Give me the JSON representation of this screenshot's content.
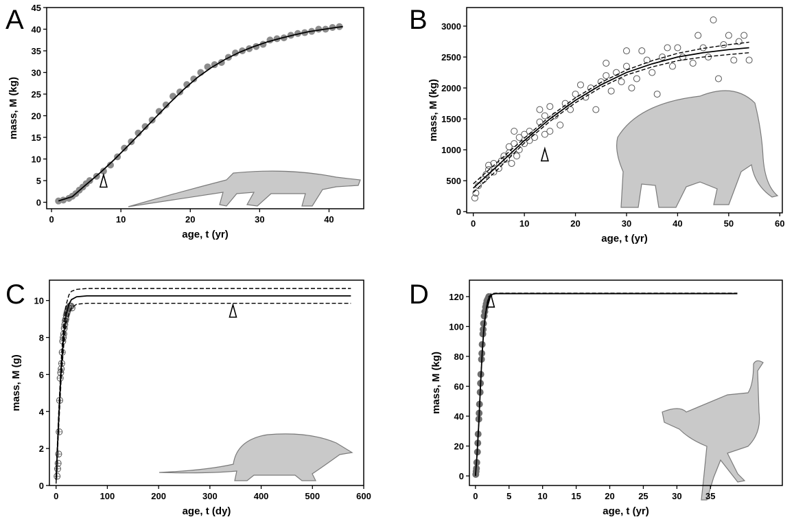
{
  "chart_data": [
    {
      "type": "scatter",
      "panel_label": "A",
      "x_label": "age, t (yr)",
      "y_label": "mass, M (kg)",
      "xlim": [
        -0.7,
        45
      ],
      "ylim": [
        -1.5,
        45
      ],
      "xticks": [
        0,
        10,
        20,
        30,
        40
      ],
      "yticks": [
        0,
        5,
        10,
        15,
        20,
        25,
        30,
        35,
        40,
        45
      ],
      "series": [
        {
          "style": "points",
          "marker": "filled",
          "color": "#8c8c8c",
          "x": [
            1,
            1.7,
            2.5,
            3,
            3.5,
            4,
            4.5,
            5,
            5.5,
            6.5,
            7.5,
            8.5,
            9.5,
            10.5,
            11.5,
            12.5,
            13.5,
            14.5,
            15.5,
            16.5,
            17.5,
            18.5,
            19.5,
            20.5,
            21.5,
            22.5,
            23.5,
            24.5,
            25.5,
            26.5,
            27.5,
            28.5,
            29.5,
            30.5,
            31.5,
            32.5,
            33.5,
            34.5,
            35.5,
            36.5,
            37.5,
            38.5,
            39.5,
            40.5,
            41.5
          ],
          "values": [
            0.3,
            0.5,
            0.9,
            1.4,
            2,
            2.8,
            3.5,
            4.3,
            5,
            6,
            7.2,
            8.6,
            10.5,
            12.5,
            14,
            16,
            17.5,
            19,
            21,
            22.5,
            24.5,
            25.5,
            27.2,
            28.5,
            30,
            31.3,
            31.8,
            32.3,
            33.5,
            34.5,
            35,
            35.5,
            36,
            36.5,
            37.5,
            37.8,
            38,
            38.6,
            39,
            39.2,
            39.5,
            40,
            40,
            40.4,
            40.6
          ]
        },
        {
          "style": "line",
          "dash": false,
          "color": "#000000",
          "x": [
            1,
            3,
            5,
            7,
            9,
            11,
            13,
            15,
            17,
            19,
            21,
            23,
            25,
            27,
            29,
            31,
            33,
            35,
            37,
            39,
            41,
            42
          ],
          "values": [
            0.3,
            1.3,
            4.1,
            6.8,
            9.8,
            13,
            16.3,
            19.6,
            22.9,
            26,
            28.8,
            31.1,
            33,
            34.6,
            35.9,
            37,
            37.9,
            38.7,
            39.4,
            39.9,
            40.4,
            40.6
          ]
        }
      ],
      "annotations": [
        {
          "x": 7.5,
          "y": 3.5
        }
      ]
    },
    {
      "type": "scatter",
      "panel_label": "B",
      "x_label": "age, t (yr)",
      "y_label": "mass, M (kg)",
      "xlim": [
        -1.3,
        60.5
      ],
      "ylim": [
        -20,
        3300
      ],
      "xticks": [
        0,
        10,
        20,
        30,
        40,
        50,
        60
      ],
      "yticks": [
        0,
        500,
        1000,
        1500,
        2000,
        2500,
        3000
      ],
      "series": [
        {
          "style": "points",
          "marker": "open",
          "color": "#555555",
          "x": [
            0.3,
            0.5,
            1,
            2,
            2.5,
            3,
            3,
            4,
            4,
            5,
            5.5,
            6,
            6.5,
            7,
            7,
            7.5,
            8,
            8,
            8.5,
            9,
            9,
            10,
            10,
            11,
            11,
            12,
            13,
            13,
            14,
            14,
            15,
            15,
            16,
            17,
            18,
            19,
            20,
            21,
            22,
            23,
            24,
            25,
            26,
            26,
            27,
            28,
            29,
            30,
            30,
            31,
            32,
            33,
            34,
            35,
            36,
            37,
            38,
            39,
            40,
            41,
            43,
            44,
            45,
            46,
            47,
            48,
            49,
            50,
            51,
            52,
            53,
            54
          ],
          "values": [
            220,
            300,
            420,
            520,
            600,
            750,
            680,
            640,
            780,
            700,
            820,
            900,
            850,
            950,
            1050,
            780,
            1100,
            1300,
            900,
            1000,
            1200,
            1100,
            1250,
            1150,
            1300,
            1200,
            1450,
            1650,
            1250,
            1550,
            1300,
            1700,
            1550,
            1400,
            1750,
            1650,
            1900,
            2050,
            1850,
            2000,
            1650,
            2100,
            2400,
            2200,
            1950,
            2250,
            2100,
            2600,
            2350,
            2000,
            2150,
            2600,
            2450,
            2250,
            1900,
            2500,
            2650,
            2350,
            2650,
            2500,
            2400,
            2850,
            2650,
            2500,
            3100,
            2150,
            2700,
            2850,
            2450,
            2750,
            2850,
            2450
          ]
        },
        {
          "style": "line",
          "dash": true,
          "color": "#000000",
          "x": [
            0,
            5,
            10,
            15,
            20,
            25,
            30,
            35,
            40,
            45,
            50,
            54
          ],
          "values": [
            450,
            820,
            1190,
            1540,
            1840,
            2090,
            2290,
            2440,
            2560,
            2640,
            2700,
            2740
          ]
        },
        {
          "style": "line",
          "dash": false,
          "color": "#000000",
          "x": [
            0,
            5,
            10,
            15,
            20,
            25,
            30,
            35,
            40,
            45,
            50,
            54
          ],
          "values": [
            380,
            760,
            1150,
            1500,
            1800,
            2050,
            2250,
            2390,
            2500,
            2570,
            2620,
            2650
          ]
        },
        {
          "style": "line",
          "dash": true,
          "color": "#000000",
          "x": [
            0,
            5,
            10,
            15,
            20,
            25,
            30,
            35,
            40,
            45,
            50,
            54
          ],
          "values": [
            310,
            700,
            1110,
            1460,
            1760,
            2010,
            2210,
            2340,
            2440,
            2500,
            2540,
            2570
          ]
        }
      ],
      "annotations": [
        {
          "x": 14,
          "y": 820
        }
      ]
    },
    {
      "type": "scatter",
      "panel_label": "C",
      "x_label": "age, t (dy)",
      "y_label": "mass, M (g)",
      "xlim": [
        -13,
        600
      ],
      "ylim": [
        0,
        11.1
      ],
      "xticks": [
        0,
        100,
        200,
        300,
        400,
        500,
        600
      ],
      "yticks": [
        0,
        2,
        4,
        6,
        8,
        10
      ],
      "series": [
        {
          "style": "points",
          "marker": "open-cross",
          "color": "#555555",
          "x": [
            2,
            3,
            4,
            5,
            6,
            7,
            8,
            9,
            10,
            11,
            12,
            13,
            14,
            15,
            16,
            17,
            18,
            19,
            20,
            21,
            22,
            23,
            24,
            25,
            27,
            29,
            31
          ],
          "values": [
            0.5,
            0.9,
            1.2,
            1.7,
            2.9,
            4.6,
            5.8,
            6.1,
            6.3,
            6.6,
            7.2,
            7.8,
            8,
            8.2,
            8.5,
            8.7,
            8.9,
            9,
            9.2,
            9.3,
            9.4,
            9.5,
            9.6,
            9.6,
            9.7,
            9.7,
            9.6
          ]
        },
        {
          "style": "line",
          "dash": true,
          "color": "#000000",
          "x": [
            0,
            5,
            10,
            15,
            20,
            25,
            30,
            40,
            60,
            100,
            575
          ],
          "values": [
            0.5,
            3.9,
            6.8,
            8.8,
            9.8,
            10.3,
            10.5,
            10.6,
            10.65,
            10.65,
            10.65
          ]
        },
        {
          "style": "line",
          "dash": false,
          "color": "#000000",
          "x": [
            0,
            5,
            10,
            15,
            20,
            25,
            30,
            40,
            60,
            100,
            575
          ],
          "values": [
            0.3,
            3.5,
            6.3,
            8.2,
            9.3,
            9.8,
            10.05,
            10.2,
            10.25,
            10.25,
            10.25
          ]
        },
        {
          "style": "line",
          "dash": true,
          "color": "#000000",
          "x": [
            0,
            5,
            10,
            15,
            20,
            25,
            30,
            40,
            60,
            100,
            575
          ],
          "values": [
            0.1,
            3.1,
            5.8,
            7.6,
            8.8,
            9.3,
            9.6,
            9.8,
            9.85,
            9.85,
            9.85
          ]
        }
      ],
      "annotations": [
        {
          "x": 345,
          "y": 9.1
        }
      ]
    },
    {
      "type": "scatter",
      "panel_label": "D",
      "x_label": "age, t (yr)",
      "y_label": "mass, M (kg)",
      "xlim": [
        -0.9,
        45.7
      ],
      "ylim": [
        -6.4,
        131
      ],
      "xticks": [
        0,
        5,
        10,
        15,
        20,
        25,
        30,
        35
      ],
      "yticks": [
        0,
        20,
        40,
        60,
        80,
        100,
        120
      ],
      "series": [
        {
          "style": "points",
          "marker": "filled",
          "color": "#6e6e6e",
          "x": [
            0.05,
            0.1,
            0.15,
            0.2,
            0.3,
            0.35,
            0.4,
            0.5,
            0.55,
            0.6,
            0.7,
            0.75,
            0.8,
            0.9,
            0.95,
            1,
            1.1,
            1.15,
            1.2,
            1.3,
            1.4,
            1.5,
            1.6,
            1.7,
            1.8,
            1.9,
            2
          ],
          "values": [
            1,
            3,
            5,
            9,
            16,
            22,
            28,
            38,
            42,
            48,
            56,
            62,
            68,
            78,
            82,
            88,
            95,
            98,
            102,
            107,
            110,
            113,
            115,
            117,
            118,
            119,
            120
          ]
        },
        {
          "style": "line",
          "dash": false,
          "color": "#000000",
          "x": [
            0,
            0.25,
            0.5,
            0.75,
            1,
            1.25,
            1.5,
            1.75,
            2,
            2.5,
            3,
            5,
            39
          ],
          "values": [
            0,
            15,
            35,
            60,
            82,
            98,
            108,
            115,
            119,
            121.5,
            122,
            122,
            122
          ]
        },
        {
          "style": "line",
          "dash": true,
          "color": "#000000",
          "x": [
            0,
            0.25,
            0.5,
            0.75,
            1,
            1.25,
            1.5,
            1.75,
            2,
            2.5,
            3,
            5,
            39
          ],
          "values": [
            0,
            15.5,
            36,
            61,
            83,
            99,
            109,
            116,
            120,
            122,
            122.3,
            122.3,
            122.3
          ]
        }
      ],
      "annotations": [
        {
          "x": 2.3,
          "y": 113
        }
      ]
    }
  ]
}
